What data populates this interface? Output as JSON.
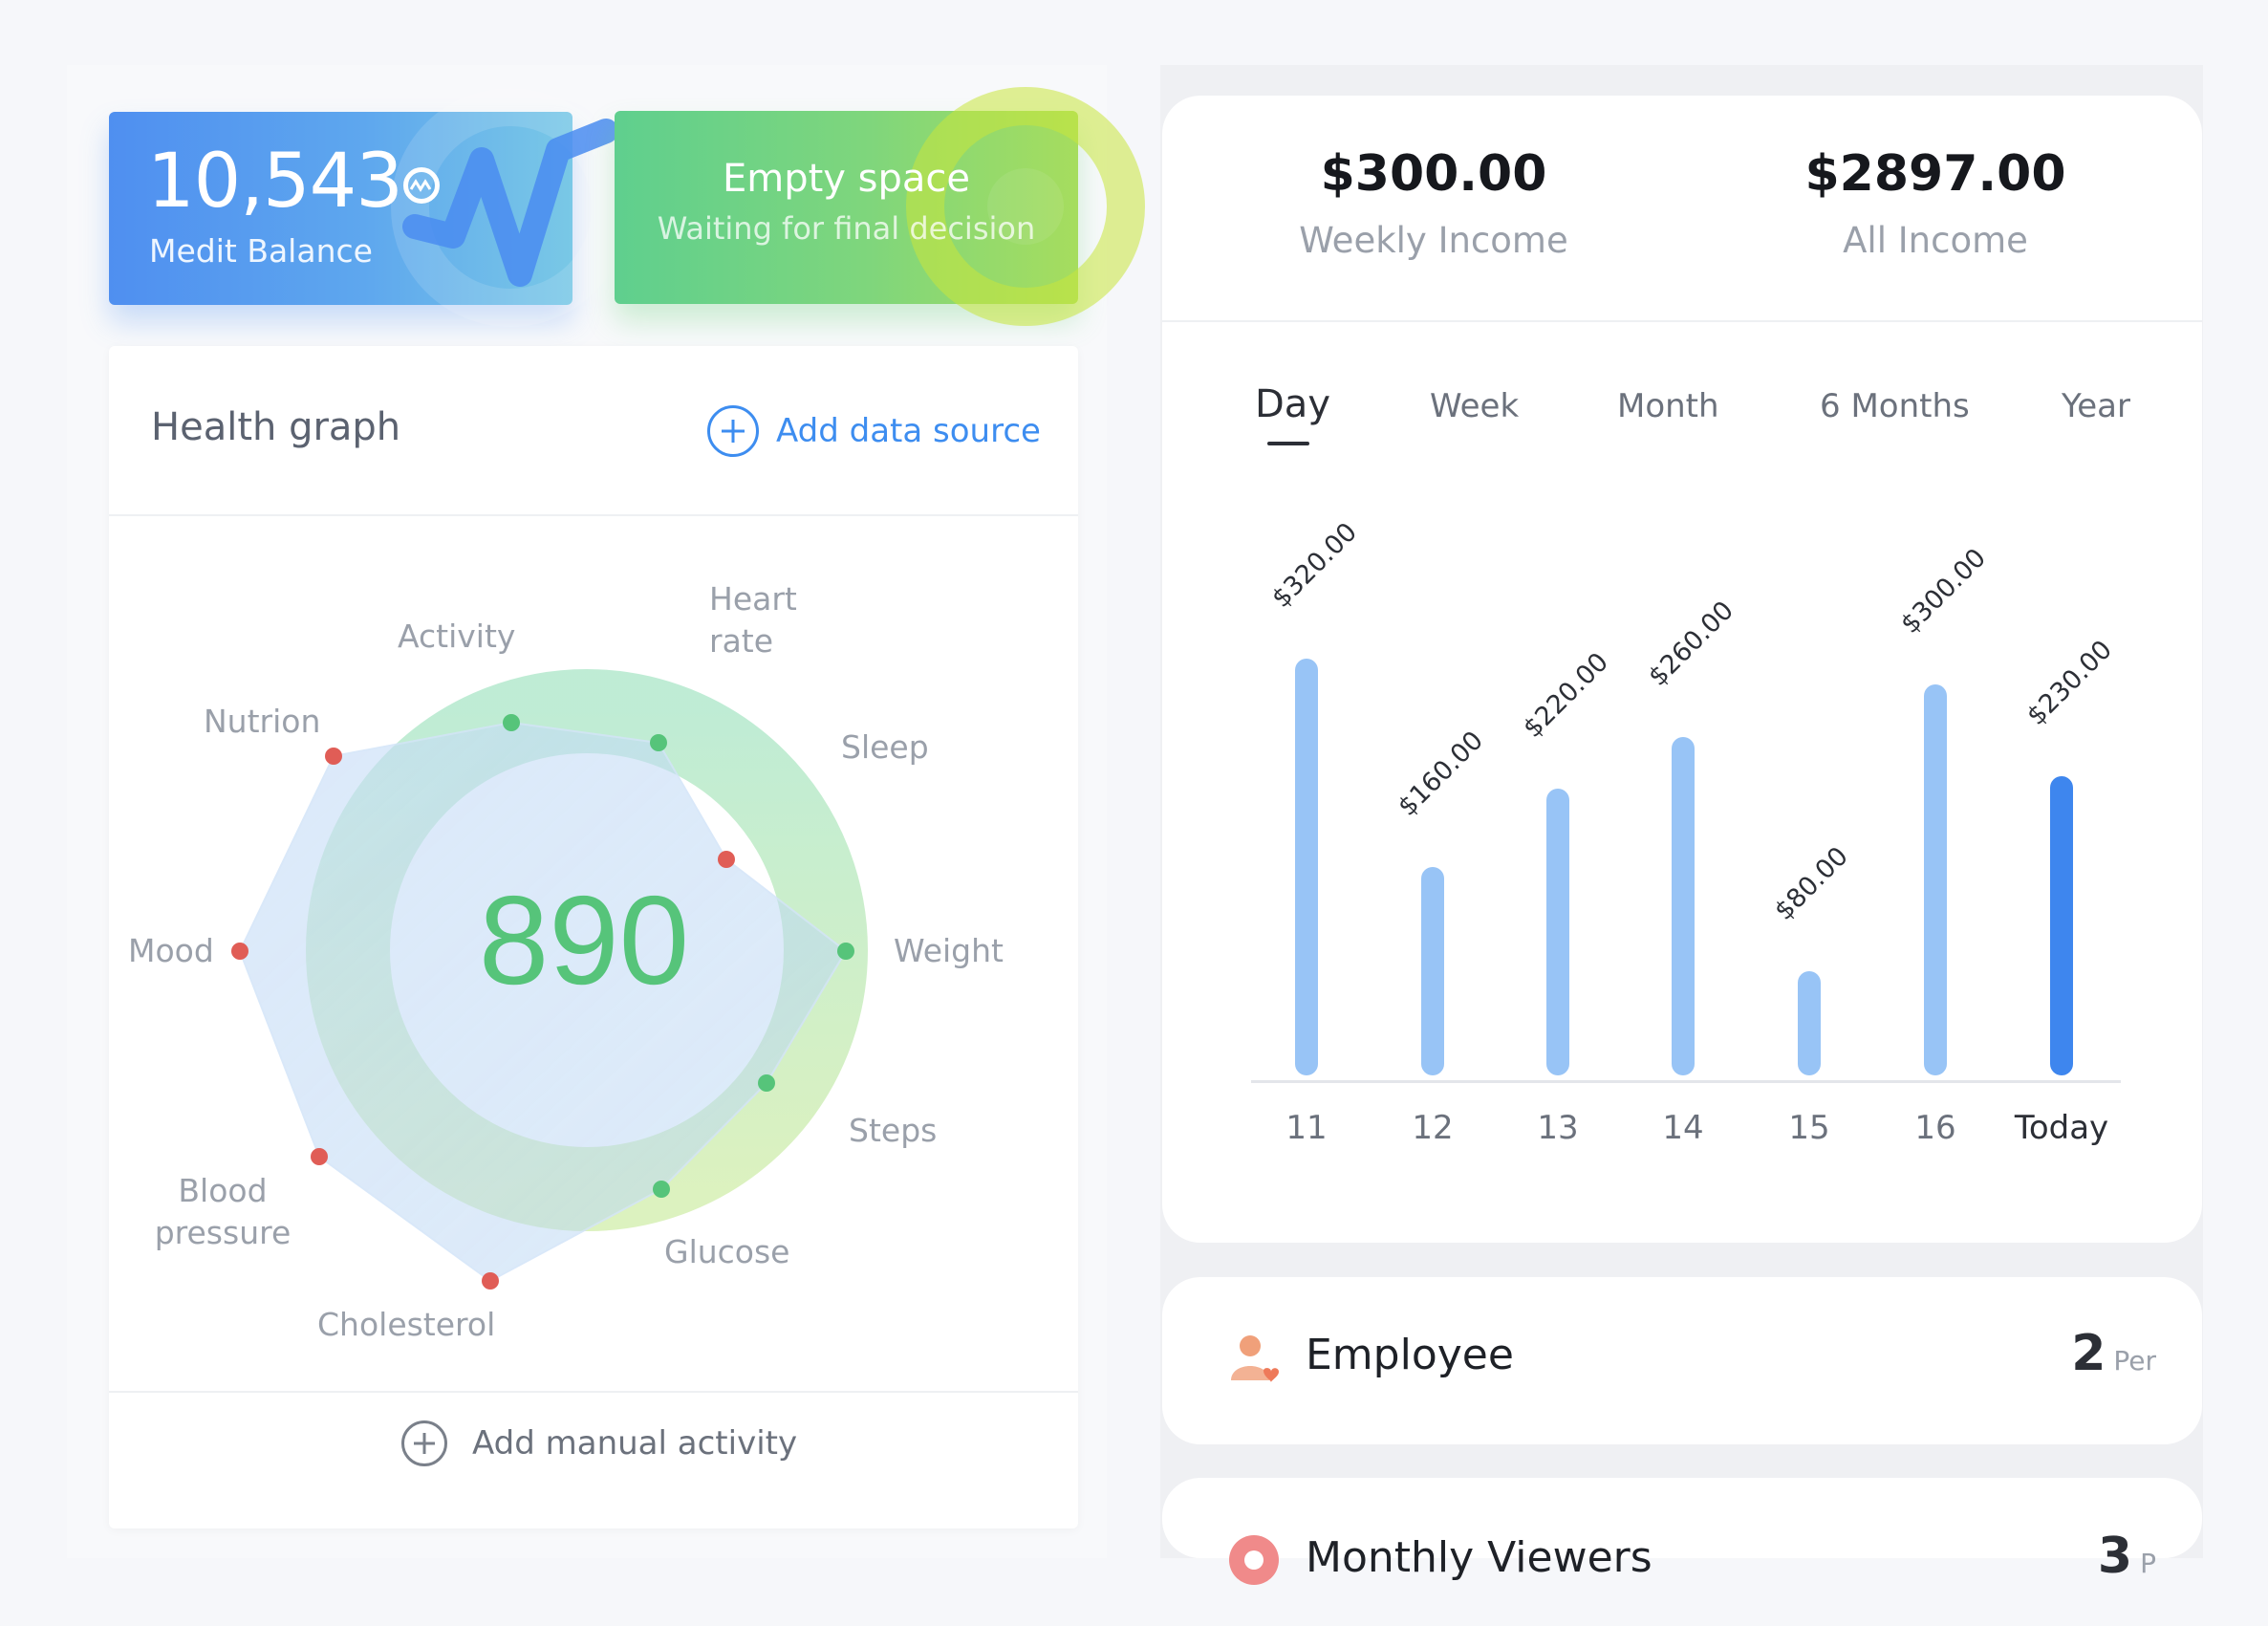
{
  "balance_card": {
    "amount": "10,543",
    "label": "Medit Balance"
  },
  "status_card": {
    "title": "Empty space",
    "subtitle": "Waiting for final decision"
  },
  "health": {
    "title": "Health graph",
    "add_source_label": "Add data source",
    "score": "890",
    "metrics": [
      "Activity",
      "Heart rate",
      "Sleep",
      "Weight",
      "Steps",
      "Glucose",
      "Cholesterol",
      "Blood pressure",
      "Mood",
      "Nutrion"
    ],
    "manual_label": "Add manual activity",
    "colors": {
      "good": "#56c47a",
      "bad": "#e05d56"
    }
  },
  "income": {
    "weekly_value": "$300.00",
    "weekly_label": "Weekly Income",
    "all_value": "$2897.00",
    "all_label": "All Income",
    "tabs": [
      "Day",
      "Week",
      "Month",
      "6 Months",
      "Year"
    ],
    "active_tab": "Day"
  },
  "chart_data": {
    "type": "bar",
    "categories": [
      "11",
      "12",
      "13",
      "14",
      "15",
      "16",
      "Today"
    ],
    "values": [
      320,
      160,
      220,
      260,
      80,
      300,
      230
    ],
    "labels": [
      "$320.00",
      "$160.00",
      "$220.00",
      "$260.00",
      "$80.00",
      "$300.00",
      "$230.00"
    ],
    "highlight": "Today",
    "colors": {
      "bar": "#98c4f6",
      "highlight": "#3e86ee"
    }
  },
  "rows": [
    {
      "label": "Employee",
      "value": "2",
      "unit": "Per"
    },
    {
      "label": "Monthly Viewers",
      "value": "3",
      "unit": "P"
    }
  ]
}
